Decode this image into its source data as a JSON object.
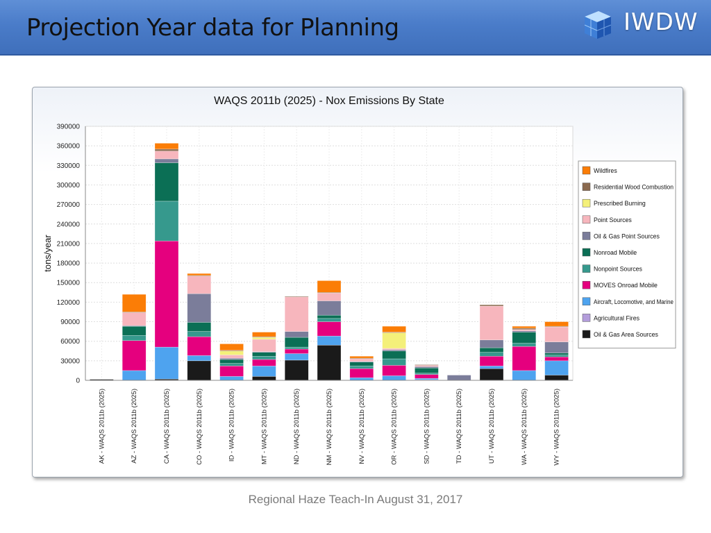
{
  "slide": {
    "title": "Projection Year data for Planning",
    "logo_text": "IWDW",
    "footer": "Regional Haze Teach-In August 31, 2017"
  },
  "chart_data": {
    "type": "bar",
    "stacked": true,
    "title": "WAQS 2011b (2025) - Nox Emissions By State",
    "xlabel": "",
    "ylabel": "tons/year",
    "ylim": [
      0,
      390000
    ],
    "yticks": [
      0,
      30000,
      60000,
      90000,
      120000,
      150000,
      180000,
      210000,
      240000,
      270000,
      300000,
      330000,
      360000,
      390000
    ],
    "grid": true,
    "legend_position": "right",
    "categories": [
      "AK - WAQS 2011b (2025)",
      "AZ - WAQS 2011b (2025)",
      "CA - WAQS 2011b (2025)",
      "CO - WAQS 2011b (2025)",
      "ID - WAQS 2011b (2025)",
      "MT - WAQS 2011b (2025)",
      "ND - WAQS 2011b (2025)",
      "NM - WAQS 2011b (2025)",
      "NV - WAQS 2011b (2025)",
      "OR - WAQS 2011b (2025)",
      "SD - WAQS 2011b (2025)",
      "TD - WAQS 2011b (2025)",
      "UT - WAQS 2011b (2025)",
      "WA - WAQS 2011b (2025)",
      "WY - WAQS 2011b (2025)"
    ],
    "series": [
      {
        "name": "Oil & Gas Area Sources",
        "color": "#1a1a1a",
        "values": [
          1500,
          0,
          2000,
          30000,
          0,
          6000,
          31000,
          54000,
          0,
          0,
          0,
          0,
          18000,
          0,
          8000
        ]
      },
      {
        "name": "Agricultural Fires",
        "color": "#b39ddb",
        "values": [
          0,
          0,
          0,
          0,
          0,
          0,
          0,
          0,
          0,
          0,
          1000,
          0,
          0,
          0,
          0
        ]
      },
      {
        "name": "Aircraft, Locomotive, and Marine",
        "color": "#4ea3ef",
        "values": [
          0,
          15000,
          49000,
          8000,
          6000,
          16000,
          10000,
          14000,
          4000,
          7000,
          2000,
          0,
          4000,
          15000,
          22000
        ]
      },
      {
        "name": "MOVES Onroad Mobile",
        "color": "#e5007e",
        "values": [
          0,
          46000,
          163000,
          29000,
          16000,
          10000,
          7000,
          22000,
          14000,
          16000,
          6000,
          0,
          15000,
          37000,
          6000
        ]
      },
      {
        "name": "Nonpoint Sources",
        "color": "#36998d",
        "values": [
          0,
          8000,
          61000,
          8000,
          4000,
          5000,
          3000,
          5000,
          4000,
          10000,
          2000,
          0,
          6000,
          5000,
          3000
        ]
      },
      {
        "name": "Nonroad Mobile",
        "color": "#0b6f55",
        "values": [
          0,
          14000,
          59000,
          14000,
          6000,
          6000,
          15000,
          5000,
          6000,
          12000,
          8000,
          0,
          7000,
          17000,
          3000
        ]
      },
      {
        "name": "Oil & Gas Point Sources",
        "color": "#7b7d9a",
        "values": [
          0,
          1000,
          6000,
          44000,
          2000,
          1000,
          9000,
          22000,
          1000,
          2000,
          2000,
          8000,
          12000,
          2000,
          17000
        ]
      },
      {
        "name": "Point Sources",
        "color": "#f7b6bd",
        "values": [
          0,
          20000,
          12000,
          27000,
          5000,
          19000,
          53000,
          12000,
          4000,
          2000,
          2000,
          0,
          52000,
          2000,
          23000
        ]
      },
      {
        "name": "Prescribed Burning",
        "color": "#f4f07a",
        "values": [
          0,
          0,
          0,
          0,
          6000,
          3000,
          0,
          0,
          0,
          24000,
          0,
          0,
          0,
          0,
          0
        ]
      },
      {
        "name": "Residential Wood Combustion",
        "color": "#8b6a4f",
        "values": [
          0,
          1000,
          3000,
          1000,
          1000,
          1000,
          1000,
          1000,
          1000,
          1000,
          1000,
          0,
          2000,
          2000,
          1000
        ]
      },
      {
        "name": "Wildfires",
        "color": "#fb7d06",
        "values": [
          0,
          27000,
          9000,
          3000,
          10000,
          7000,
          0,
          18000,
          3000,
          9000,
          0,
          0,
          0,
          3000,
          7000
        ]
      }
    ]
  }
}
